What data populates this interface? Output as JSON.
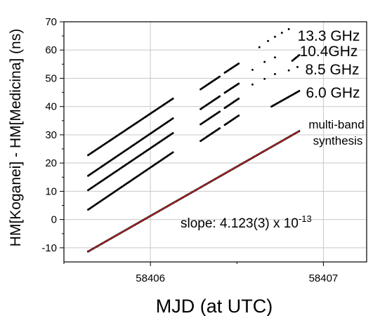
{
  "chart_data": {
    "type": "scatter",
    "xlabel": "MJD (at UTC)",
    "ylabel": "HM[Koganei] - HM[Medicina]   (ns)",
    "xlim": [
      58405.5,
      58407.25
    ],
    "ylim": [
      -15,
      70
    ],
    "x_major_ticks": [
      58406,
      58407
    ],
    "x_tick_labels": [
      "58406",
      "58407"
    ],
    "y_ticks": [
      -10,
      0,
      10,
      20,
      30,
      40,
      50,
      60,
      70
    ],
    "y_tick_labels": [
      "-10",
      "0",
      "10",
      "20",
      "30",
      "40",
      "50",
      "60",
      "70"
    ],
    "grid": true,
    "slope_base": "slope: 4.123(3) x 10",
    "slope_exp": "-13",
    "series": [
      {
        "name": "13.3 GHz",
        "color": "#000000",
        "segments": [
          [
            58405.64,
            58406.13,
            22.8,
            42.8
          ],
          [
            58406.29,
            58406.4,
            46.1,
            50.6
          ],
          [
            58406.43,
            58406.51,
            52.0,
            55.2
          ]
        ],
        "isolated": [
          [
            58406.63,
            61.0
          ],
          [
            58406.68,
            63.2
          ],
          [
            58406.72,
            64.7
          ],
          [
            58406.76,
            66.1
          ],
          [
            58406.8,
            67.4
          ]
        ]
      },
      {
        "name": "10.4GHz",
        "color": "#000000",
        "segments": [
          [
            58405.64,
            58406.13,
            15.5,
            35.8
          ],
          [
            58406.29,
            58406.4,
            39.1,
            43.6
          ],
          [
            58406.43,
            58406.51,
            44.9,
            48.1
          ],
          [
            58406.82,
            58406.86,
            56.2,
            58.2
          ]
        ],
        "isolated": [
          [
            58406.59,
            53.0
          ],
          [
            58406.66,
            55.8
          ],
          [
            58406.72,
            57.4
          ]
        ]
      },
      {
        "name": "8.5 GHz",
        "color": "#000000",
        "segments": [
          [
            58405.64,
            58406.13,
            10.4,
            30.6
          ],
          [
            58406.29,
            58406.4,
            33.7,
            38.2
          ],
          [
            58406.43,
            58406.51,
            39.5,
            42.8
          ]
        ],
        "isolated": [
          [
            58406.59,
            47.8
          ],
          [
            58406.66,
            49.8
          ],
          [
            58406.72,
            51.5
          ],
          [
            58406.8,
            52.8
          ],
          [
            58406.85,
            54.0
          ]
        ]
      },
      {
        "name": "6.0 GHz",
        "color": "#000000",
        "segments": [
          [
            58405.64,
            58406.13,
            3.5,
            23.8
          ],
          [
            58406.29,
            58406.4,
            27.8,
            32.3
          ],
          [
            58406.43,
            58406.51,
            33.5,
            36.8
          ],
          [
            58406.7,
            58406.86,
            40.0,
            45.5
          ]
        ],
        "isolated": []
      },
      {
        "name": "multi-band synthesis",
        "color": "#000000",
        "segments": [
          [
            58405.64,
            58406.86,
            -11.3,
            31.3
          ]
        ],
        "isolated": []
      }
    ],
    "fit_line": {
      "color": "#dd2222",
      "x": [
        58405.64,
        58406.86
      ],
      "y": [
        -11.3,
        31.3
      ]
    },
    "annotations": {
      "label_13_3": "13.3 GHz",
      "label_10_4": "10.4GHz",
      "label_8_5": "8.5 GHz",
      "label_6_0": "6.0 GHz",
      "label_mbs_1": "multi-band",
      "label_mbs_2": "synthesis"
    }
  }
}
